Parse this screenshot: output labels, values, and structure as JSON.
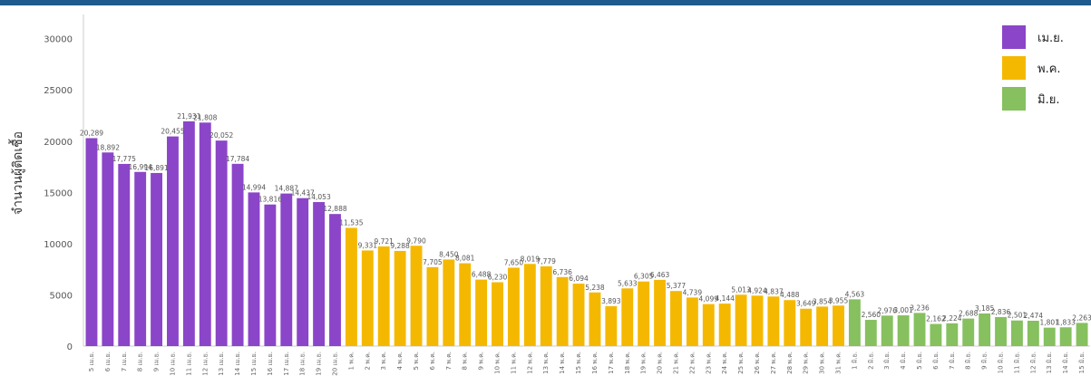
{
  "colors": {
    "top_bar": "#1e5b8c",
    "axis": "#cccccc",
    "april": "#8b45c9",
    "may": "#f5b800",
    "june": "#86c05f"
  },
  "chart_data": {
    "type": "bar",
    "ylabel": "จำนวนผู้ติดเชื้อ",
    "ylim": [
      0,
      32000
    ],
    "yticks": [
      0,
      5000,
      10000,
      15000,
      20000,
      25000,
      30000
    ],
    "grid": false,
    "legend_position": "top-right",
    "categories": [
      "5 เม.ย.",
      "6 เม.ย.",
      "7 เม.ย.",
      "8 เม.ย.",
      "9 เม.ย.",
      "10 เม.ย.",
      "11 เม.ย.",
      "12 เม.ย.",
      "13 เม.ย.",
      "14 เม.ย.",
      "15 เม.ย.",
      "16 เม.ย.",
      "17 เม.ย.",
      "18 เม.ย.",
      "19 เม.ย.",
      "20 เม.ย.",
      "1 พ.ค.",
      "2 พ.ค.",
      "3 พ.ค.",
      "4 พ.ค.",
      "5 พ.ค.",
      "6 พ.ค.",
      "7 พ.ค.",
      "8 พ.ค.",
      "9 พ.ค.",
      "10 พ.ค.",
      "11 พ.ค.",
      "12 พ.ค.",
      "13 พ.ค.",
      "14 พ.ค.",
      "15 พ.ค.",
      "16 พ.ค.",
      "17 พ.ค.",
      "18 พ.ค.",
      "19 พ.ค.",
      "20 พ.ค.",
      "21 พ.ค.",
      "22 พ.ค.",
      "23 พ.ค.",
      "24 พ.ค.",
      "25 พ.ค.",
      "26 พ.ค.",
      "27 พ.ค.",
      "28 พ.ค.",
      "29 พ.ค.",
      "30 พ.ค.",
      "31 พ.ค.",
      "1 มิ.ย.",
      "2 มิ.ย.",
      "3 มิ.ย.",
      "4 มิ.ย.",
      "5 มิ.ย.",
      "6 มิ.ย.",
      "7 มิ.ย.",
      "8 มิ.ย.",
      "9 มิ.ย.",
      "10 มิ.ย.",
      "11 มิ.ย.",
      "12 มิ.ย.",
      "13 มิ.ย.",
      "14 มิ.ย.",
      "15 มิ.ย."
    ],
    "values": [
      20289,
      18892,
      17775,
      16994,
      16891,
      20455,
      21931,
      21808,
      20052,
      17784,
      14994,
      13816,
      14887,
      14437,
      14053,
      12888,
      11535,
      9331,
      9721,
      9288,
      9790,
      7705,
      8450,
      8081,
      6488,
      6230,
      7650,
      8019,
      7779,
      6736,
      6094,
      5238,
      3893,
      5633,
      6305,
      6463,
      5377,
      4739,
      4099,
      4144,
      5013,
      4924,
      4837,
      4488,
      3649,
      3854,
      3955,
      4563,
      2560,
      2976,
      3001,
      3236,
      2162,
      2224,
      2688,
      3185,
      2836,
      2501,
      2474,
      1801,
      1833,
      2263
    ],
    "value_labels": [
      "20,289",
      "18,892",
      "17,775",
      "16,994",
      "16,891",
      "20,455",
      "21,931",
      "21,808",
      "20,052",
      "17,784",
      "14,994",
      "13,816",
      "14,887",
      "14,437",
      "14,053",
      "12,888",
      "11,535",
      "9,331",
      "9,721",
      "9,288",
      "9,790",
      "7,705",
      "8,450",
      "8,081",
      "6,488",
      "6,230",
      "7,650",
      "8,019",
      "7,779",
      "6,736",
      "6,094",
      "5,238",
      "3,893",
      "5,633",
      "6,305",
      "6,463",
      "5,377",
      "4,739",
      "4,099",
      "4,144",
      "5,013",
      "4,924",
      "4,837",
      "4,488",
      "3,649",
      "3,854",
      "3,955",
      "4,563",
      "2,560",
      "2,976",
      "3,001",
      "3,236",
      "2,162",
      "2,224",
      "2,688",
      "3,185",
      "2,836",
      "2,501",
      "2,474",
      "1,801",
      "1,833",
      "2,263"
    ],
    "groups": [
      {
        "name": "เม.ย.",
        "count": 16,
        "color": "#8b45c9"
      },
      {
        "name": "พ.ค.",
        "count": 31,
        "color": "#f5b800"
      },
      {
        "name": "มิ.ย.",
        "count": 15,
        "color": "#86c05f"
      }
    ]
  }
}
